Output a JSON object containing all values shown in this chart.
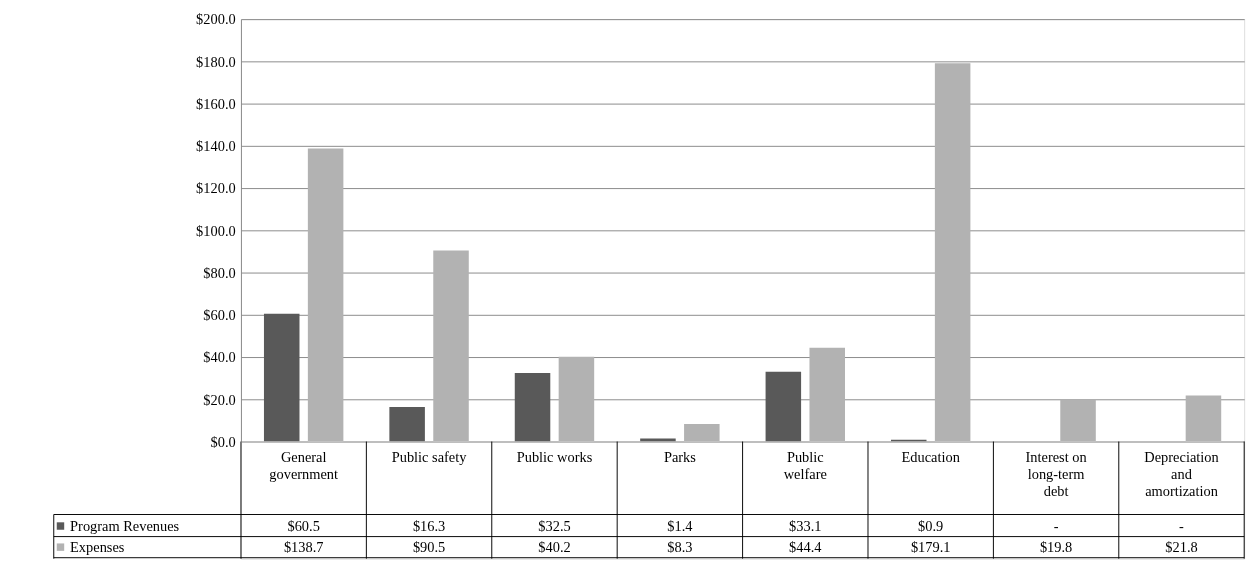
{
  "chart_data": {
    "type": "bar",
    "categories": [
      "General government",
      "Public safety",
      "Public works",
      "Parks",
      "Public welfare",
      "Education",
      "Interest on long-term debt",
      "Depreciation and amortization"
    ],
    "series": [
      {
        "name": "Program Revenues",
        "color": "#595959",
        "values": [
          60.5,
          16.3,
          32.5,
          1.4,
          33.1,
          0.9,
          null,
          null
        ],
        "value_labels": [
          "$60.5",
          "$16.3",
          "$32.5",
          "$1.4",
          "$33.1",
          "$0.9",
          "-",
          "-"
        ]
      },
      {
        "name": "Expenses",
        "color": "#b2b2b2",
        "values": [
          138.7,
          90.5,
          40.2,
          8.3,
          44.4,
          179.1,
          19.8,
          21.8
        ],
        "value_labels": [
          "$138.7",
          "$90.5",
          "$40.2",
          "$8.3",
          "$44.4",
          "$179.1",
          "$19.8",
          "$21.8"
        ]
      }
    ],
    "ylim": [
      0,
      200
    ],
    "yticks": [
      {
        "value": 0,
        "label": "$0.0"
      },
      {
        "value": 20,
        "label": "$20.0"
      },
      {
        "value": 40,
        "label": "$40.0"
      },
      {
        "value": 60,
        "label": "$60.0"
      },
      {
        "value": 80,
        "label": "$80.0"
      },
      {
        "value": 100,
        "label": "$100.0"
      },
      {
        "value": 120,
        "label": "$120.0"
      },
      {
        "value": 140,
        "label": "$140.0"
      },
      {
        "value": 160,
        "label": "$160.0"
      },
      {
        "value": 180,
        "label": "$180.0"
      },
      {
        "value": 200,
        "label": "$200.0"
      }
    ],
    "grid": "y",
    "legend": "bottom"
  }
}
